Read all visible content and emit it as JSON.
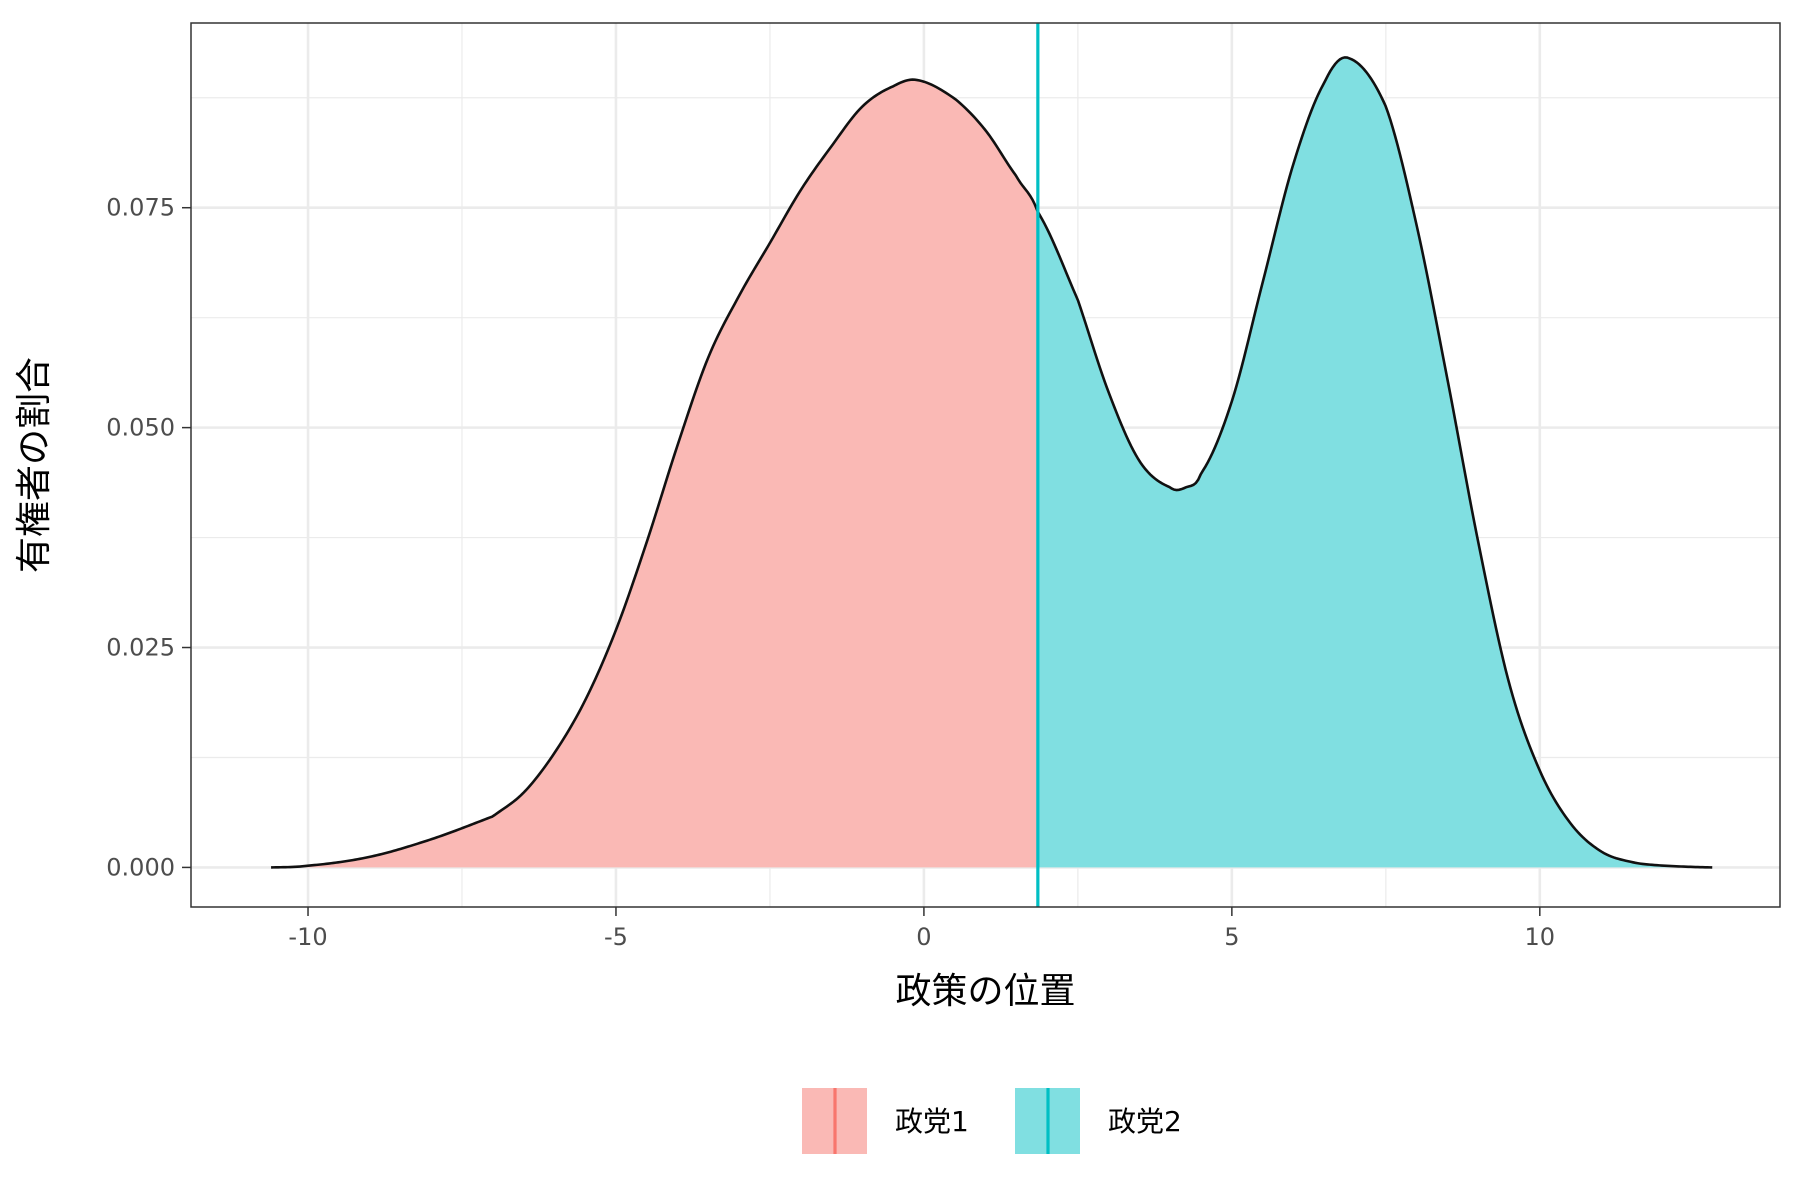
{
  "chart_data": {
    "type": "area",
    "title": "",
    "xlabel": "政策の位置",
    "ylabel": "有権者の割合",
    "xlim": [
      -11.9,
      13.9
    ],
    "ylim": [
      -0.0045,
      0.096
    ],
    "x_ticks": [
      -10,
      -5,
      0,
      5,
      10
    ],
    "x_tick_labels": [
      "-10",
      "-5",
      "0",
      "5",
      "10"
    ],
    "y_ticks": [
      0.0,
      0.025,
      0.05,
      0.075
    ],
    "y_tick_labels": [
      "0.000",
      "0.025",
      "0.050",
      "0.075"
    ],
    "grid": true,
    "legend_position": "bottom",
    "divider_x": 1.85,
    "series": [
      {
        "name": "政党1",
        "color": "#F8766D",
        "fill": "#FAB9B5",
        "x_range": [
          -10.6,
          1.85
        ]
      },
      {
        "name": "政党2",
        "color": "#00BFC4",
        "fill": "#80DFE1",
        "x_range": [
          1.85,
          12.8
        ]
      }
    ],
    "density": {
      "x": [
        -10.6,
        -10.0,
        -9.0,
        -8.0,
        -7.0,
        -6.5,
        -6.0,
        -5.5,
        -5.0,
        -4.5,
        -4.0,
        -3.5,
        -3.0,
        -2.5,
        -2.0,
        -1.5,
        -1.0,
        -0.5,
        -0.1,
        0.5,
        1.0,
        1.5,
        1.85,
        2.5,
        3.0,
        3.5,
        4.0,
        4.25,
        4.5,
        5.0,
        5.5,
        6.0,
        6.5,
        6.9,
        7.5,
        8.0,
        8.5,
        9.0,
        9.5,
        10.0,
        10.5,
        11.0,
        11.5,
        12.0,
        12.8
      ],
      "y": [
        0.0,
        0.0002,
        0.0012,
        0.0032,
        0.0058,
        0.0085,
        0.013,
        0.019,
        0.027,
        0.037,
        0.048,
        0.058,
        0.065,
        0.071,
        0.077,
        0.082,
        0.0865,
        0.0888,
        0.0895,
        0.0874,
        0.0838,
        0.0786,
        0.0745,
        0.0645,
        0.054,
        0.0462,
        0.0432,
        0.0432,
        0.0448,
        0.053,
        0.0665,
        0.08,
        0.0892,
        0.092,
        0.0865,
        0.073,
        0.0555,
        0.037,
        0.021,
        0.011,
        0.005,
        0.0018,
        0.0006,
        0.0002,
        0.0
      ]
    }
  }
}
